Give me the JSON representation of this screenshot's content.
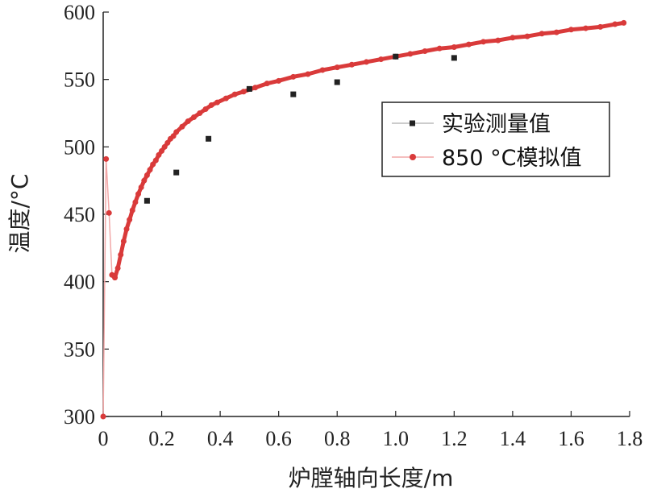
{
  "chart_data": {
    "type": "scatter",
    "xlabel": "炉膛轴向长度/m",
    "ylabel": "温度/°C",
    "xlim": [
      0,
      1.8
    ],
    "ylim": [
      300,
      600
    ],
    "xticks": [
      "0",
      "0.2",
      "0.4",
      "0.6",
      "0.8",
      "1.0",
      "1.2",
      "1.4",
      "1.6",
      "1.8"
    ],
    "yticks": [
      "300",
      "350",
      "400",
      "450",
      "500",
      "550",
      "600"
    ],
    "grid": false,
    "legend_position": "right-middle",
    "series": [
      {
        "name": "实验测量值",
        "marker": "square",
        "color": "#222222",
        "x": [
          0.15,
          0.25,
          0.36,
          0.5,
          0.65,
          0.8,
          1.0,
          1.2
        ],
        "y": [
          460,
          481,
          506,
          543,
          539,
          548,
          567,
          566
        ]
      },
      {
        "name": "850 °C模拟值",
        "marker": "circle",
        "color": "#d93a3a",
        "x": [
          0.0,
          0.01,
          0.02,
          0.03,
          0.04,
          0.05,
          0.06,
          0.07,
          0.08,
          0.09,
          0.1,
          0.11,
          0.12,
          0.13,
          0.14,
          0.15,
          0.16,
          0.17,
          0.18,
          0.19,
          0.2,
          0.21,
          0.22,
          0.23,
          0.24,
          0.25,
          0.27,
          0.29,
          0.31,
          0.33,
          0.35,
          0.37,
          0.39,
          0.42,
          0.45,
          0.48,
          0.52,
          0.56,
          0.6,
          0.65,
          0.7,
          0.75,
          0.8,
          0.85,
          0.9,
          0.95,
          1.0,
          1.05,
          1.1,
          1.15,
          1.2,
          1.25,
          1.3,
          1.35,
          1.4,
          1.45,
          1.5,
          1.55,
          1.6,
          1.65,
          1.7,
          1.75,
          1.78
        ],
        "y": [
          300,
          491,
          451,
          405,
          403,
          410,
          420,
          430,
          439,
          446,
          453,
          459,
          465,
          470,
          475,
          479,
          483,
          487,
          490,
          494,
          497,
          500,
          503,
          506,
          508,
          511,
          515,
          519,
          522,
          525,
          528,
          531,
          533,
          536,
          539,
          541,
          544,
          547,
          549,
          552,
          554,
          557,
          559,
          561,
          563,
          565,
          567,
          569,
          571,
          573,
          574,
          576,
          578,
          579,
          581,
          582,
          584,
          585,
          587,
          588,
          589,
          591,
          592
        ]
      }
    ]
  }
}
